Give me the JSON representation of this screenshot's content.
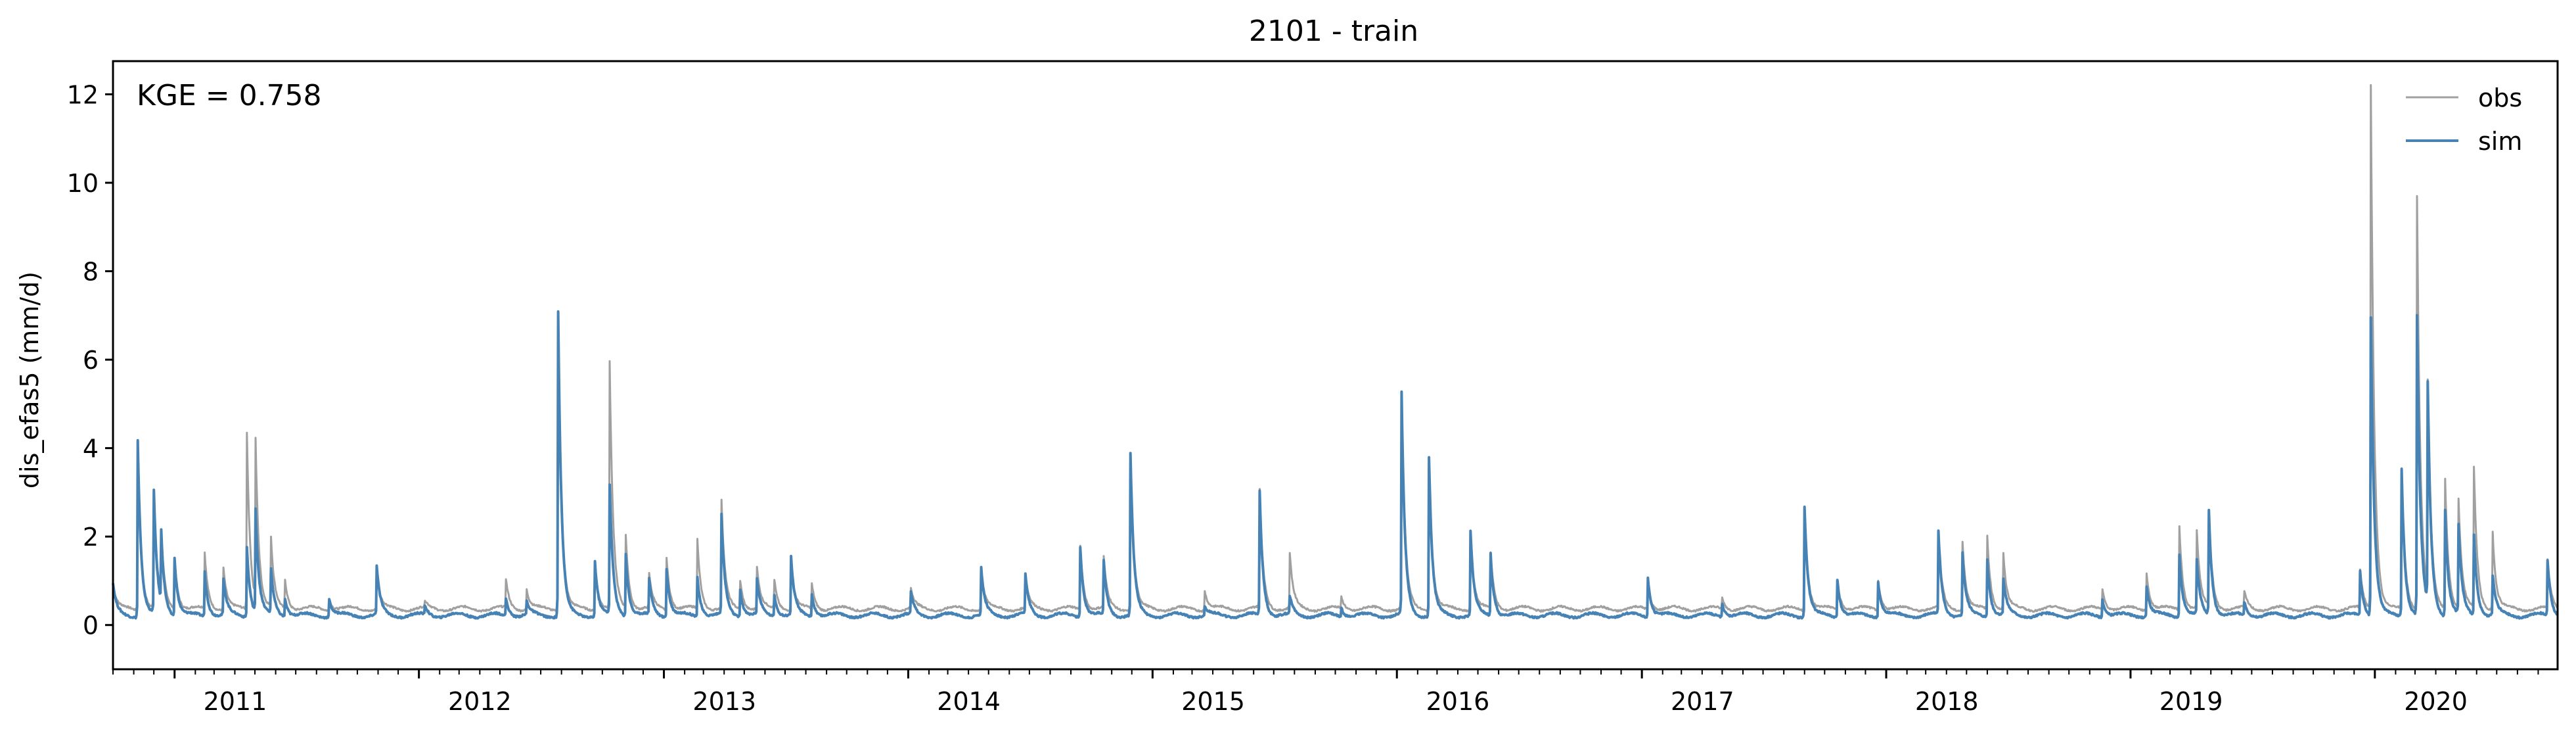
{
  "chart_data": {
    "type": "line",
    "title": "2101 - train",
    "xlabel": "",
    "ylabel": "dis_efas5 (mm/d)",
    "annotation": "KGE = 0.758",
    "x_range": [
      "2010-10-01",
      "2020-09-30"
    ],
    "ylim": [
      -1.0,
      12.75
    ],
    "yticks": [
      0,
      2,
      4,
      6,
      8,
      10,
      12
    ],
    "xticks": [
      {
        "date": "2011-01-01",
        "label": "2011"
      },
      {
        "date": "2012-01-01",
        "label": "2012"
      },
      {
        "date": "2013-01-01",
        "label": "2013"
      },
      {
        "date": "2014-01-01",
        "label": "2014"
      },
      {
        "date": "2015-01-01",
        "label": "2015"
      },
      {
        "date": "2016-01-01",
        "label": "2016"
      },
      {
        "date": "2017-01-01",
        "label": "2017"
      },
      {
        "date": "2018-01-01",
        "label": "2018"
      },
      {
        "date": "2019-01-01",
        "label": "2019"
      },
      {
        "date": "2020-01-01",
        "label": "2020"
      }
    ],
    "grid": false,
    "legend_position": "top-right",
    "series": [
      {
        "name": "obs",
        "color": "#a0a0a0",
        "baseline": 0.35,
        "peaks": [
          [
            "2010-10-01",
            0.9
          ],
          [
            "2010-11-07",
            3.9
          ],
          [
            "2010-12-01",
            2.9
          ],
          [
            "2010-12-12",
            1.8
          ],
          [
            "2011-01-01",
            1.5
          ],
          [
            "2011-02-15",
            1.6
          ],
          [
            "2011-03-15",
            1.3
          ],
          [
            "2011-04-19",
            4.35
          ],
          [
            "2011-05-02",
            3.95
          ],
          [
            "2011-05-25",
            1.9
          ],
          [
            "2011-06-15",
            1.0
          ],
          [
            "2011-08-20",
            0.6
          ],
          [
            "2011-10-30",
            1.2
          ],
          [
            "2012-01-10",
            0.5
          ],
          [
            "2012-05-10",
            1.0
          ],
          [
            "2012-06-10",
            0.8
          ],
          [
            "2012-07-27",
            7.0
          ],
          [
            "2012-09-20",
            1.4
          ],
          [
            "2012-10-12",
            5.9
          ],
          [
            "2012-11-05",
            2.0
          ],
          [
            "2012-12-10",
            1.1
          ],
          [
            "2013-01-05",
            1.55
          ],
          [
            "2013-02-20",
            1.9
          ],
          [
            "2013-03-28",
            2.8
          ],
          [
            "2013-04-25",
            1.0
          ],
          [
            "2013-05-20",
            1.3
          ],
          [
            "2013-06-15",
            1.0
          ],
          [
            "2013-07-10",
            1.45
          ],
          [
            "2013-08-10",
            0.9
          ],
          [
            "2014-01-05",
            0.8
          ],
          [
            "2014-04-20",
            1.3
          ],
          [
            "2014-06-25",
            1.1
          ],
          [
            "2014-09-15",
            1.8
          ],
          [
            "2014-10-20",
            1.5
          ],
          [
            "2014-11-29",
            3.8
          ],
          [
            "2015-03-20",
            0.8
          ],
          [
            "2015-06-10",
            3.0
          ],
          [
            "2015-07-25",
            1.6
          ],
          [
            "2015-10-10",
            0.6
          ],
          [
            "2016-01-08",
            5.2
          ],
          [
            "2016-02-18",
            3.8
          ],
          [
            "2016-04-20",
            2.1
          ],
          [
            "2016-05-20",
            1.6
          ],
          [
            "2017-01-10",
            0.9
          ],
          [
            "2017-05-01",
            0.6
          ],
          [
            "2017-09-01",
            2.7
          ],
          [
            "2017-10-20",
            1.0
          ],
          [
            "2017-12-20",
            1.0
          ],
          [
            "2018-03-20",
            2.0
          ],
          [
            "2018-04-25",
            1.9
          ],
          [
            "2018-06-01",
            2.0
          ],
          [
            "2018-06-25",
            1.6
          ],
          [
            "2018-11-20",
            0.8
          ],
          [
            "2019-01-25",
            1.2
          ],
          [
            "2019-03-15",
            2.25
          ],
          [
            "2019-04-10",
            2.1
          ],
          [
            "2019-04-28",
            2.5
          ],
          [
            "2019-06-20",
            0.7
          ],
          [
            "2019-12-10",
            1.2
          ],
          [
            "2019-12-26",
            12.2
          ],
          [
            "2020-02-10",
            3.5
          ],
          [
            "2020-03-04",
            9.7
          ],
          [
            "2020-03-20",
            5.1
          ],
          [
            "2020-04-15",
            3.3
          ],
          [
            "2020-05-05",
            2.8
          ],
          [
            "2020-05-28",
            3.5
          ],
          [
            "2020-06-25",
            2.1
          ],
          [
            "2020-09-15",
            1.4
          ]
        ]
      },
      {
        "name": "sim",
        "color": "#4682b4",
        "baseline": 0.2,
        "peaks": [
          [
            "2010-10-01",
            0.9
          ],
          [
            "2010-11-07",
            4.2
          ],
          [
            "2010-12-01",
            2.95
          ],
          [
            "2010-12-12",
            1.8
          ],
          [
            "2011-01-01",
            1.5
          ],
          [
            "2011-02-15",
            1.2
          ],
          [
            "2011-03-15",
            1.0
          ],
          [
            "2011-04-19",
            1.8
          ],
          [
            "2011-05-02",
            2.5
          ],
          [
            "2011-05-25",
            1.2
          ],
          [
            "2011-06-15",
            0.6
          ],
          [
            "2011-08-20",
            0.6
          ],
          [
            "2011-10-30",
            1.3
          ],
          [
            "2012-01-10",
            0.4
          ],
          [
            "2012-05-10",
            0.6
          ],
          [
            "2012-06-10",
            0.5
          ],
          [
            "2012-07-27",
            7.1
          ],
          [
            "2012-09-20",
            1.45
          ],
          [
            "2012-10-12",
            3.1
          ],
          [
            "2012-11-05",
            1.6
          ],
          [
            "2012-12-10",
            1.0
          ],
          [
            "2013-01-05",
            1.3
          ],
          [
            "2013-02-20",
            1.1
          ],
          [
            "2013-03-28",
            2.45
          ],
          [
            "2013-04-25",
            0.8
          ],
          [
            "2013-05-20",
            1.0
          ],
          [
            "2013-06-15",
            0.7
          ],
          [
            "2013-07-10",
            1.5
          ],
          [
            "2013-08-10",
            0.7
          ],
          [
            "2014-01-05",
            0.7
          ],
          [
            "2014-04-20",
            1.25
          ],
          [
            "2014-06-25",
            1.1
          ],
          [
            "2014-09-15",
            1.8
          ],
          [
            "2014-10-20",
            1.4
          ],
          [
            "2014-11-29",
            3.85
          ],
          [
            "2015-03-20",
            0.4
          ],
          [
            "2015-06-10",
            3.0
          ],
          [
            "2015-07-25",
            0.6
          ],
          [
            "2015-10-10",
            0.4
          ],
          [
            "2016-01-08",
            5.2
          ],
          [
            "2016-02-18",
            3.8
          ],
          [
            "2016-04-20",
            2.1
          ],
          [
            "2016-05-20",
            1.6
          ],
          [
            "2017-01-10",
            1.1
          ],
          [
            "2017-05-01",
            0.5
          ],
          [
            "2017-09-01",
            2.7
          ],
          [
            "2017-10-20",
            1.05
          ],
          [
            "2017-12-20",
            1.0
          ],
          [
            "2018-03-20",
            2.1
          ],
          [
            "2018-04-25",
            1.6
          ],
          [
            "2018-06-01",
            1.5
          ],
          [
            "2018-06-25",
            1.0
          ],
          [
            "2018-11-20",
            0.6
          ],
          [
            "2019-01-25",
            0.9
          ],
          [
            "2019-03-15",
            1.6
          ],
          [
            "2019-04-10",
            1.4
          ],
          [
            "2019-04-28",
            2.55
          ],
          [
            "2019-06-20",
            0.5
          ],
          [
            "2019-12-10",
            1.2
          ],
          [
            "2019-12-26",
            6.95
          ],
          [
            "2020-02-10",
            3.55
          ],
          [
            "2020-03-04",
            6.95
          ],
          [
            "2020-03-20",
            5.15
          ],
          [
            "2020-04-15",
            2.6
          ],
          [
            "2020-05-05",
            2.2
          ],
          [
            "2020-05-28",
            2.0
          ],
          [
            "2020-06-25",
            1.1
          ],
          [
            "2020-09-15",
            1.45
          ]
        ]
      }
    ]
  }
}
